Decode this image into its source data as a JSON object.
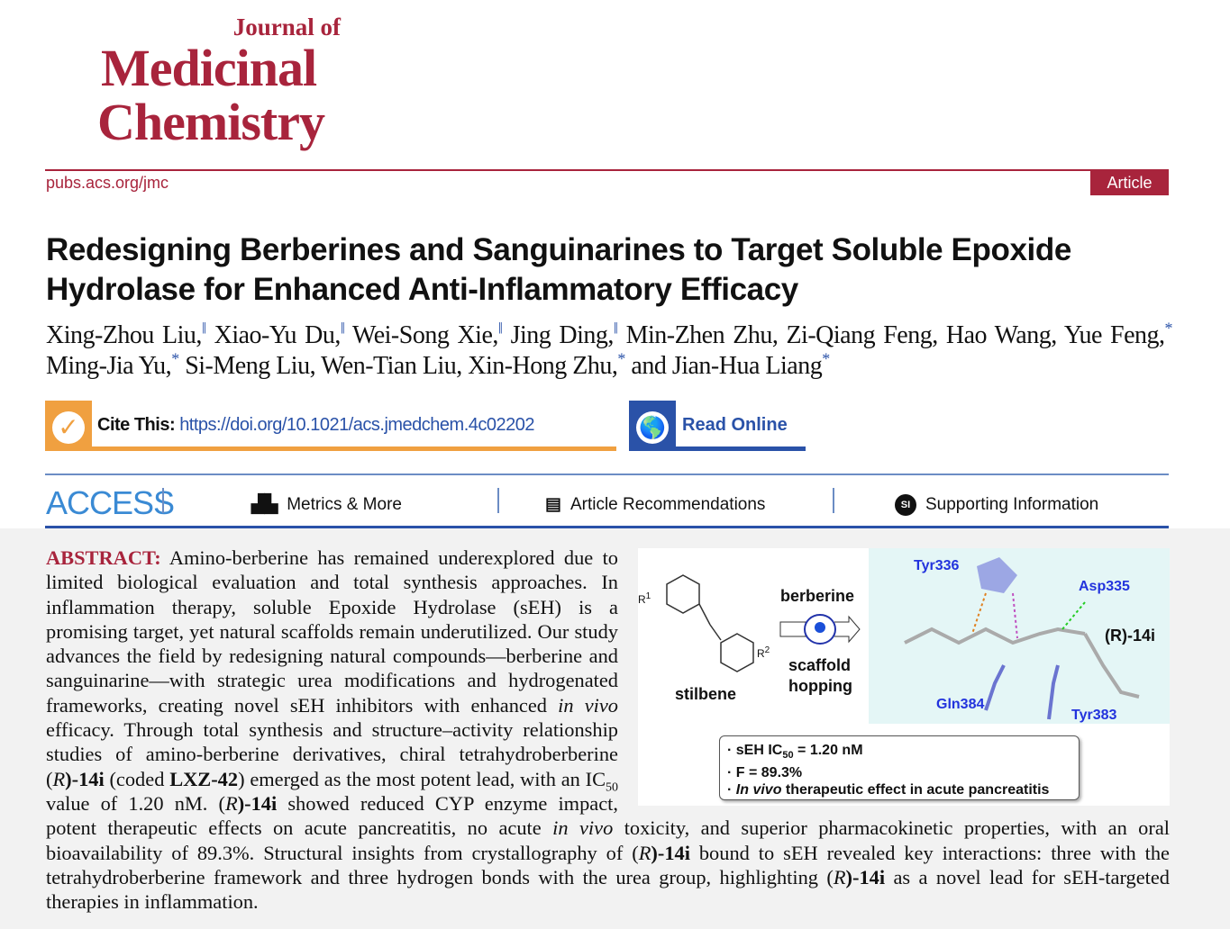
{
  "journal": {
    "line1": "Journal of",
    "line2": "Medicinal",
    "line3": "Chemistry",
    "site": "pubs.acs.org/jmc",
    "article_type": "Article"
  },
  "title": "Redesigning Berberines and Sanguinarines to Target Soluble Epoxide Hydrolase for Enhanced Anti-Inflammatory Efficacy",
  "authors": [
    {
      "name": "Xing-Zhou Liu,",
      "mark": "‖"
    },
    {
      "name": "Xiao-Yu Du,",
      "mark": "‖"
    },
    {
      "name": "Wei-Song Xie,",
      "mark": "‖"
    },
    {
      "name": "Jing Ding,",
      "mark": "‖"
    },
    {
      "name": "Min-Zhen Zhu,",
      "mark": ""
    },
    {
      "name": "Zi-Qiang Feng,",
      "mark": ""
    },
    {
      "name": "Hao Wang,",
      "mark": ""
    },
    {
      "name": "Yue Feng,",
      "mark": "*"
    },
    {
      "name": "Ming-Jia Yu,",
      "mark": "*"
    },
    {
      "name": "Si-Meng Liu,",
      "mark": ""
    },
    {
      "name": "Wen-Tian Liu,",
      "mark": ""
    },
    {
      "name": "Xin-Hong Zhu,",
      "mark": "*"
    },
    {
      "name": "and Jian-Hua Liang",
      "mark": "*"
    }
  ],
  "cite": {
    "label": "Cite This:",
    "doi": "https://doi.org/10.1021/acs.jmedchem.4c02202",
    "icon": "checkmark-icon"
  },
  "read_online": {
    "label": "Read Online",
    "icon": "globe-icon"
  },
  "access": {
    "label": "ACCESS",
    "items": [
      {
        "label": "Metrics & More",
        "icon": "bar-chart-icon"
      },
      {
        "label": "Article Recommendations",
        "icon": "newspaper-icon"
      },
      {
        "label": "Supporting Information",
        "icon": "si-icon"
      }
    ]
  },
  "abstract": {
    "label": "ABSTRACT:",
    "p1": " Amino-berberine has remained underexplored due to limited biological evaluation and total synthesis approaches. In inflammation therapy, soluble Epoxide Hydrolase (sEH) is a promising target, yet natural scaffolds remain underutilized. Our study advances the field by redesigning natural compounds—berberine and sanguinarine—with strategic urea modifications and hydrogenated frameworks, creating novel sEH inhibitors with enhanced ",
    "invivo": "in vivo",
    "p2": " efficacy. Through total synthesis and structure–activity relationship studies of amino-berberine derivatives, chiral tetrahydroberberine (",
    "R": "R",
    "cmp": ")-14i",
    "p3": " (coded ",
    "code": "LXZ-42",
    "p4": ") emerged as the most potent lead, with an IC",
    "sub50": "50",
    "p5": " value of 1.20 nM. (",
    "p6": " showed reduced CYP enzyme impact, potent therapeutic effects on acute pancreatitis, no acute ",
    "p7": " toxicity, and superior pharmacokinetic properties, with an oral bioavailability of 89.3%. Structural insights from crystallography of (",
    "p8": " bound to sEH revealed key interactions: three with the tetrahydroberberine framework and three hydrogen bonds with the urea group, highlighting (",
    "p9": " as a novel lead for sEH-targeted therapies in inflammation."
  },
  "toc": {
    "stilbene": "stilbene",
    "berberine": "berberine",
    "scaffold": "scaffold",
    "hopping": "hopping",
    "r1": "R",
    "r2": "R",
    "sup1": "1",
    "sup2": "2",
    "residues": [
      "Tyr336",
      "Asp335",
      "Gln384",
      "Tyr383"
    ],
    "compound": "(R)-14i",
    "b1a": "· sEH  IC",
    "b1sub": "50",
    "b1b": " = 1.20 nM",
    "b2": "· F = 89.3%",
    "b3a": "· ",
    "b3i": "In vivo",
    "b3b": " therapeutic effect in acute pancreatitis"
  }
}
